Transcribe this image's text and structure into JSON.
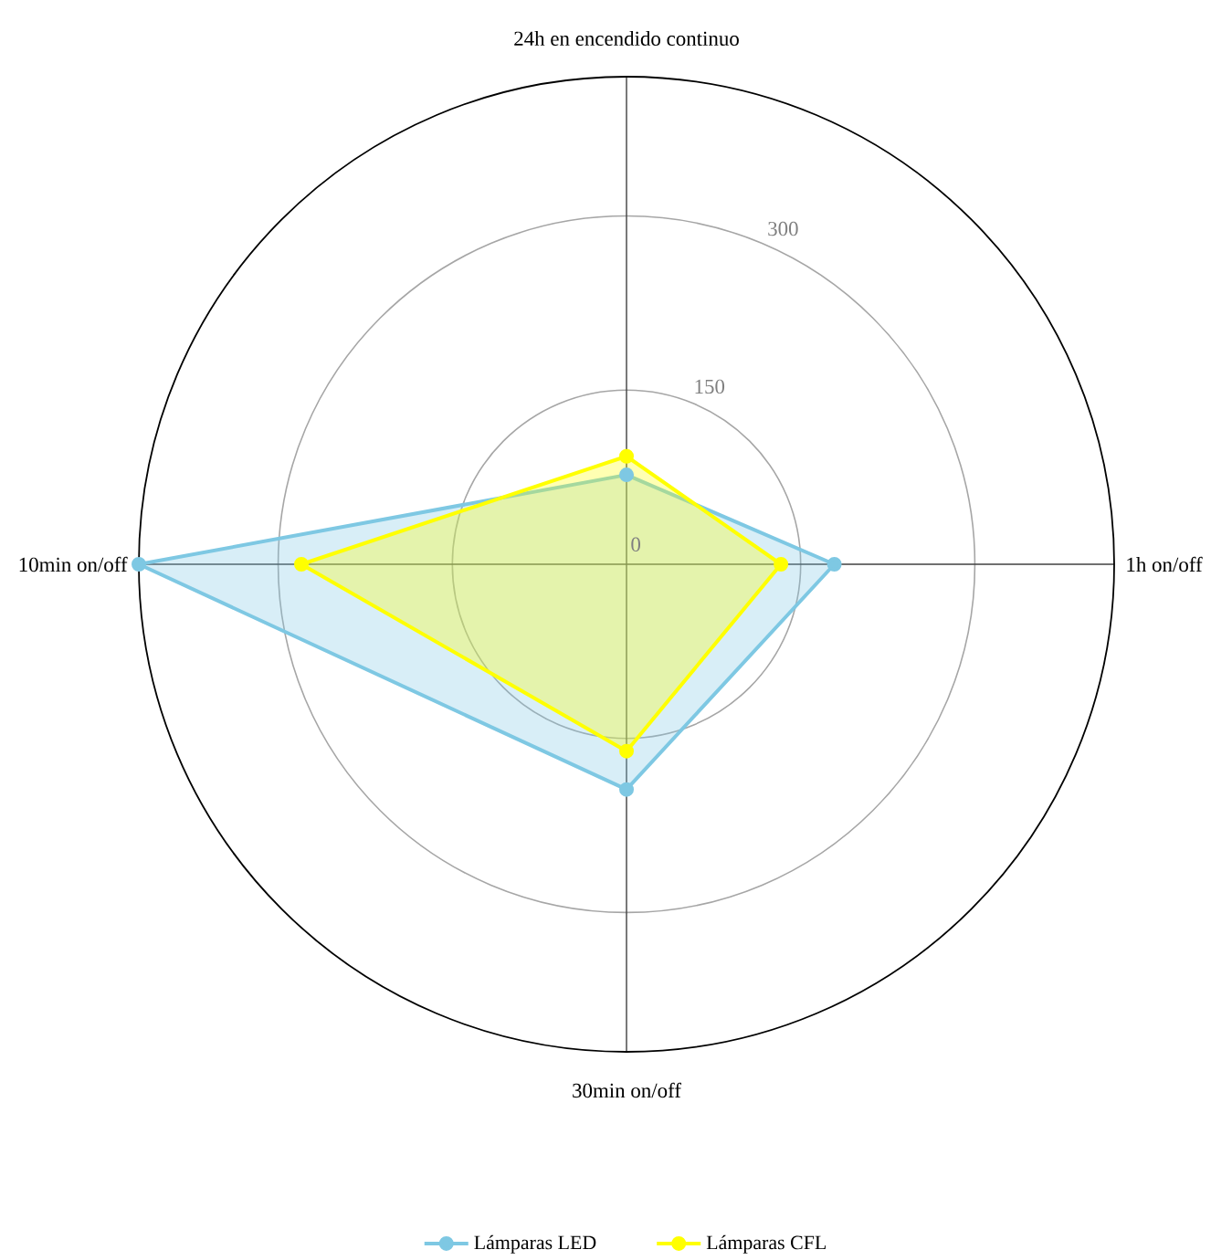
{
  "chart_data": {
    "type": "radar",
    "categories": [
      "24h en encendido continuo",
      "1h on/off",
      "30min on/off",
      "10min on/off"
    ],
    "series": [
      {
        "name": "Lámparas LED",
        "color": "#7ec8e3",
        "values": [
          77,
          179,
          194,
          420
        ]
      },
      {
        "name": "Lámparas CFL",
        "color": "#ffff00",
        "values": [
          93,
          133,
          161,
          280
        ]
      }
    ],
    "ylim": [
      0,
      420
    ],
    "yticks": [
      0,
      150,
      300
    ],
    "grid": true,
    "legend": "bottom",
    "marker": "circle"
  }
}
